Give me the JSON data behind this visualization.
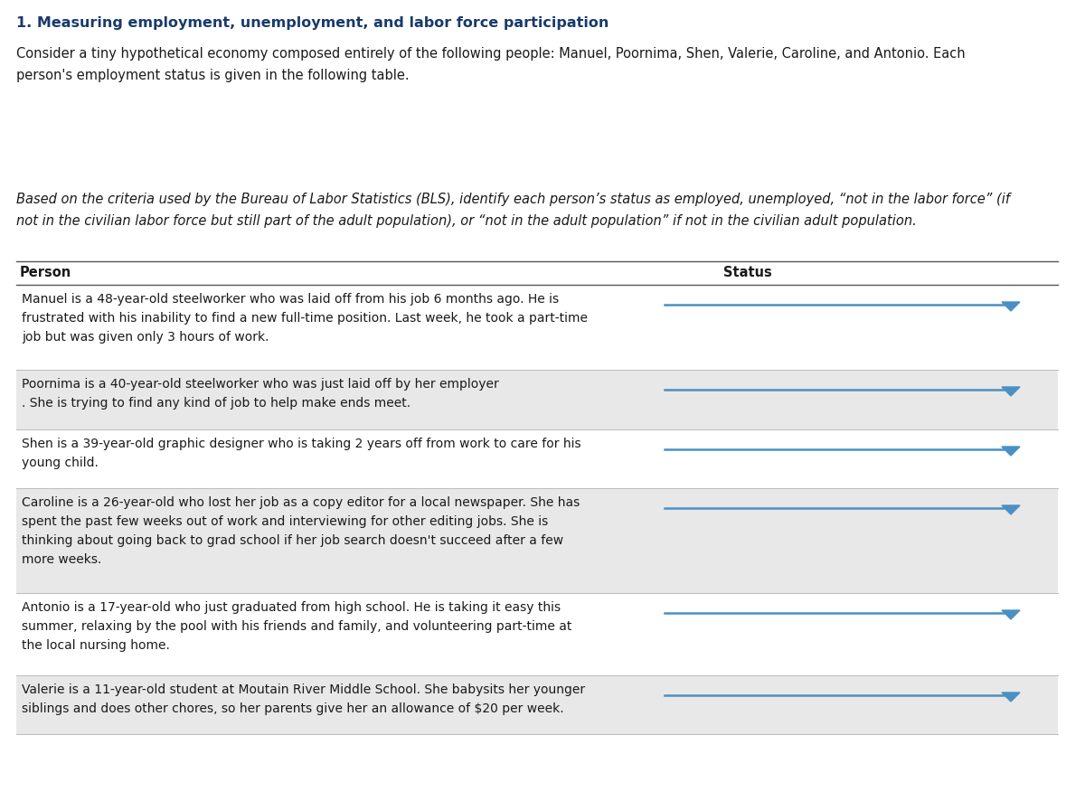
{
  "title": "1. Measuring employment, unemployment, and labor force participation",
  "intro_text": "Consider a tiny hypothetical economy composed entirely of the following people: Manuel, Poornima, Shen, Valerie, Caroline, and Antonio. Each\nperson's employment status is given in the following table.",
  "instruction_text": "Based on the criteria used by the Bureau of Labor Statistics (BLS), identify each person’s status as employed, unemployed, “not in the labor force” (if\nnot in the civilian labor force but still part of the adult population), or “not in the adult population” if not in the civilian adult population.",
  "col_header_person": "Person",
  "col_header_status": "Status",
  "rows": [
    {
      "text": "Manuel is a 48-year-old steelworker who was laid off from his job 6 months ago. He is\nfrustrated with his inability to find a new full-time position. Last week, he took a part-time\njob but was given only 3 hours of work.",
      "bg": "#ffffff",
      "n_lines": 3
    },
    {
      "text": "Poornima is a 40-year-old steelworker who was just laid off by her employer\n. She is trying to find any kind of job to help make ends meet.",
      "bg": "#e8e8e8",
      "n_lines": 2
    },
    {
      "text": "Shen is a 39-year-old graphic designer who is taking 2 years off from work to care for his\nyoung child.",
      "bg": "#ffffff",
      "n_lines": 2
    },
    {
      "text": "Caroline is a 26-year-old who lost her job as a copy editor for a local newspaper. She has\nspent the past few weeks out of work and interviewing for other editing jobs. She is\nthinking about going back to grad school if her job search doesn't succeed after a few\nmore weeks.",
      "bg": "#e8e8e8",
      "n_lines": 4
    },
    {
      "text": "Antonio is a 17-year-old who just graduated from high school. He is taking it easy this\nsummer, relaxing by the pool with his friends and family, and volunteering part-time at\nthe local nursing home.",
      "bg": "#ffffff",
      "n_lines": 3
    },
    {
      "text": "Valerie is a 11-year-old student at Moutain River Middle School. She babysits her younger\nsiblings and does other chores, so her parents give her an allowance of $20 per week.",
      "bg": "#e8e8e8",
      "n_lines": 2
    }
  ],
  "title_color": "#1a3a6b",
  "text_color": "#1a1a1a",
  "header_color": "#1a1a1a",
  "dropdown_line_color": "#4a90c4",
  "dropdown_arrow_color": "#4a90c4",
  "bg_color": "#ffffff",
  "fig_width": 12.0,
  "fig_height": 8.87,
  "dpi": 100
}
